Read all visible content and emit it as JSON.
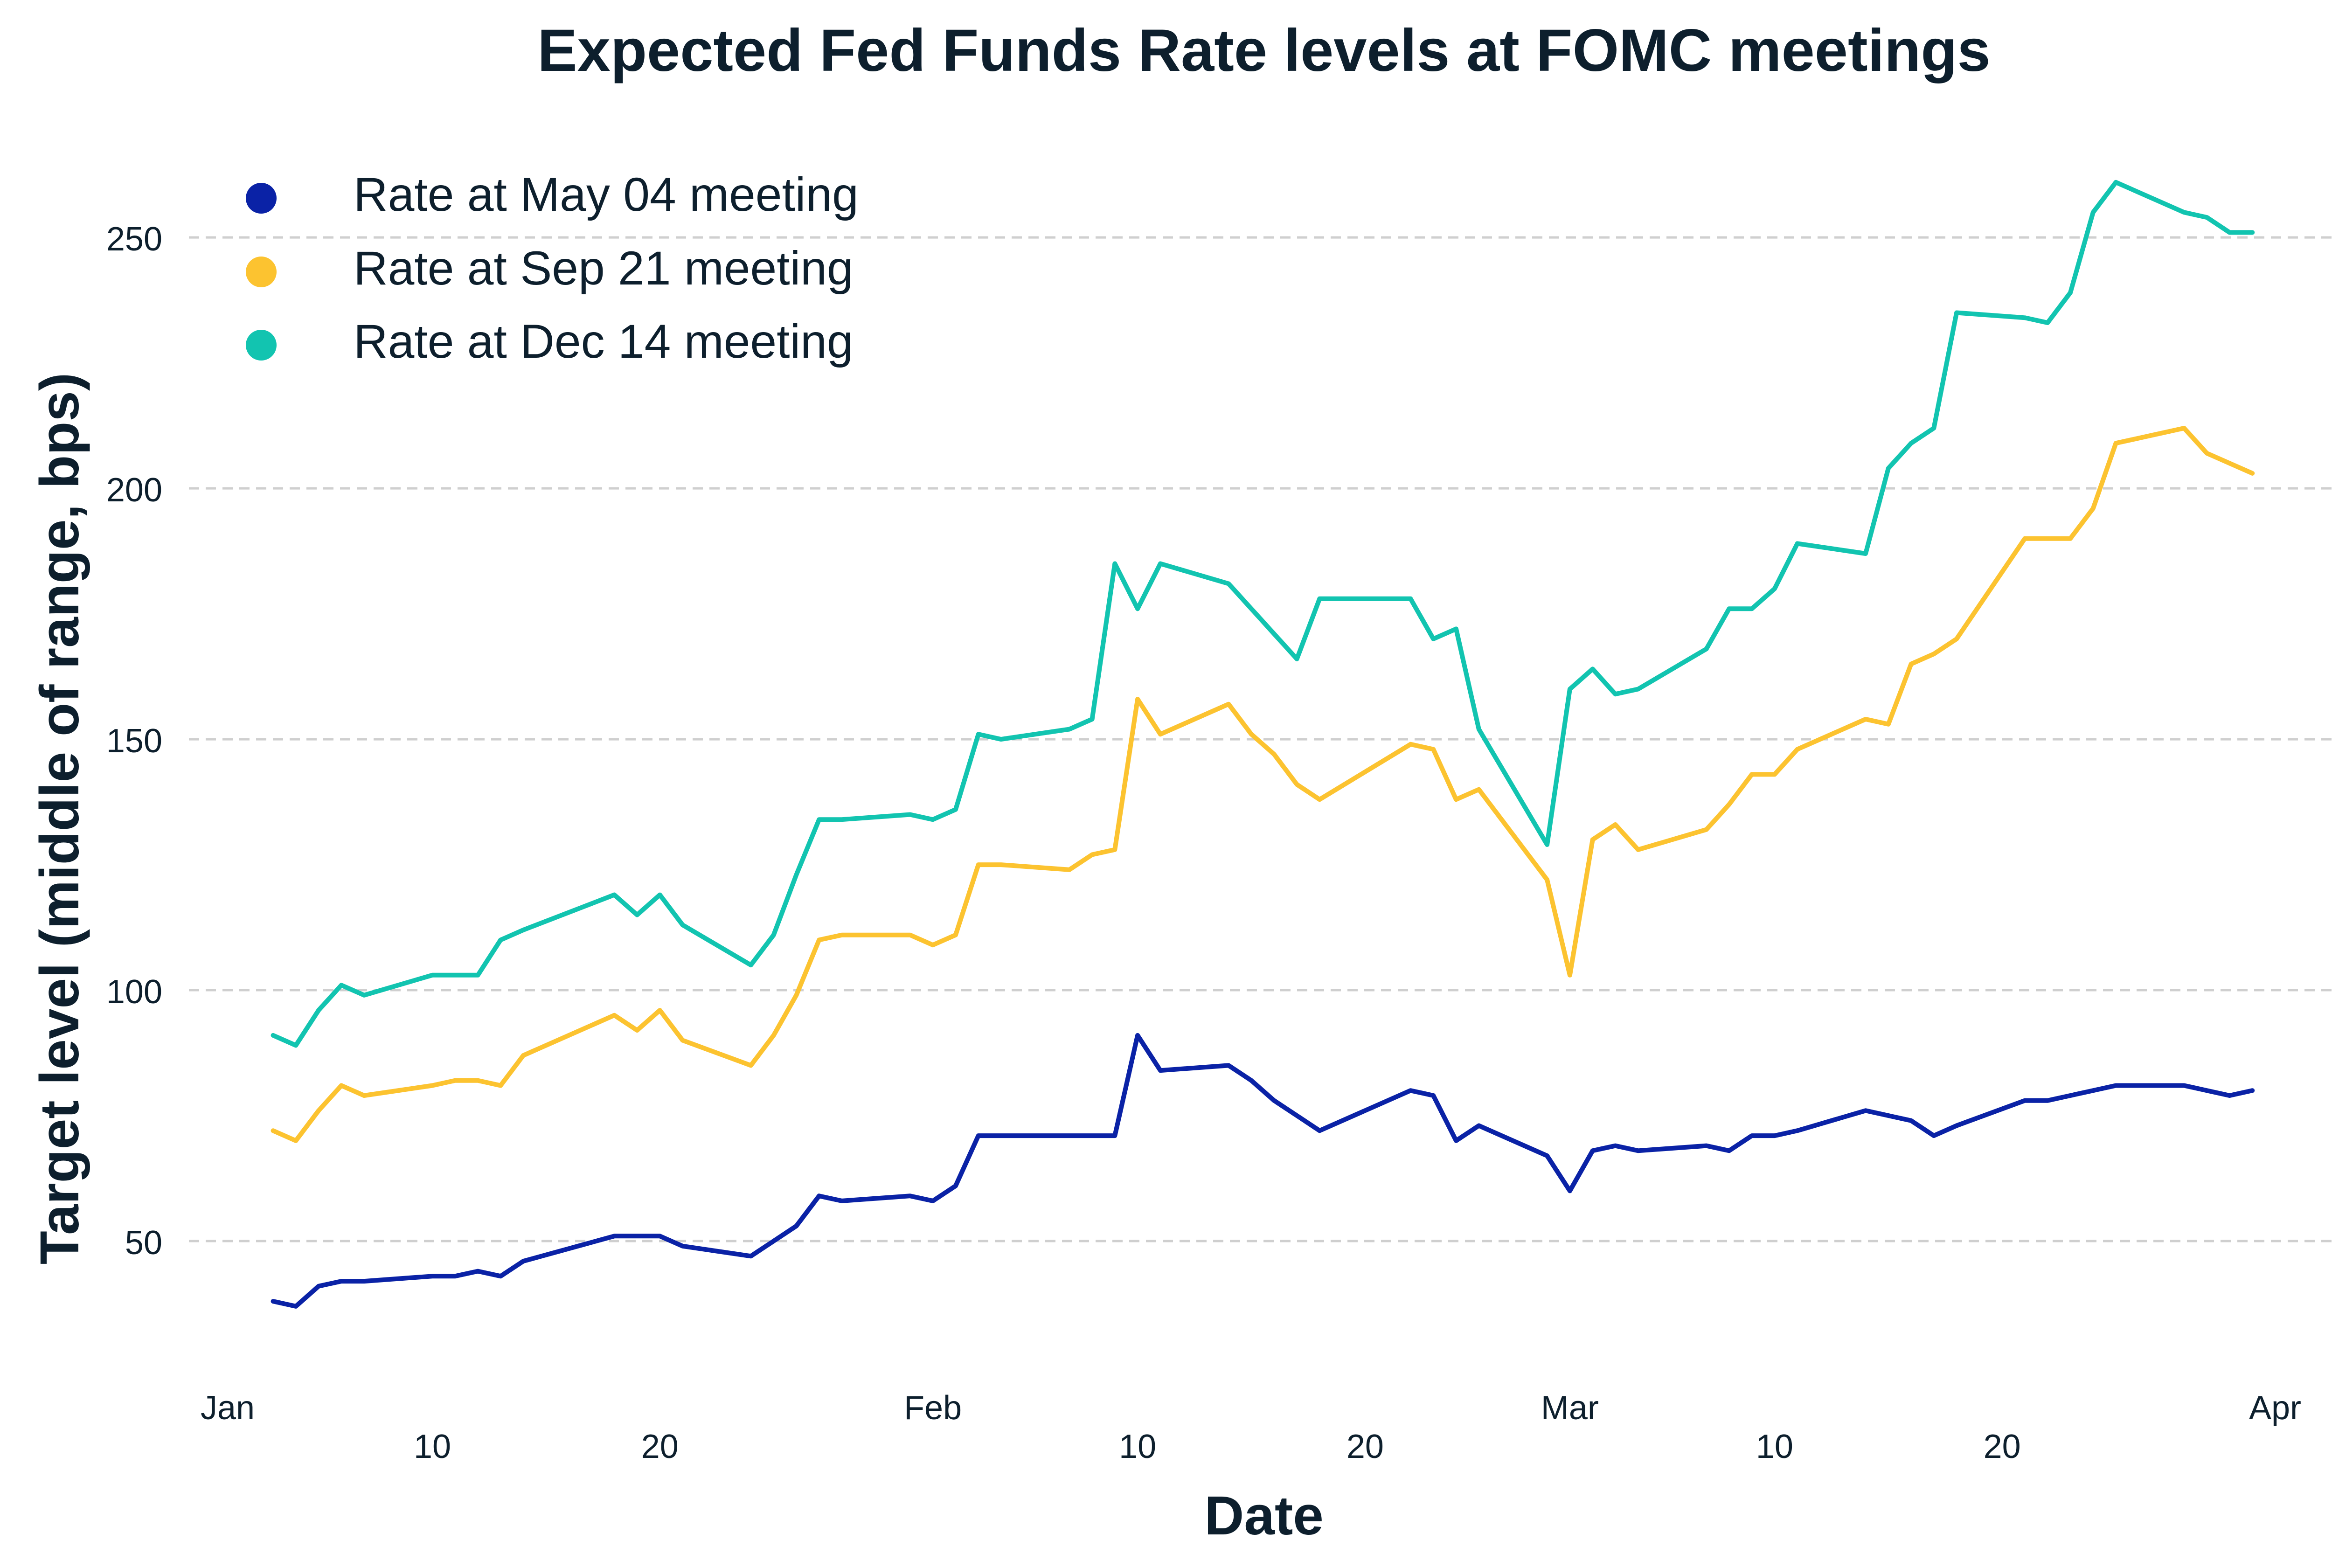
{
  "chart_data": {
    "type": "line",
    "title": "Expected Fed Funds Rate levels at FOMC meetings",
    "xlabel": "Date",
    "ylabel": "Target level (middle of range, bps)",
    "ylim": [
      25,
      262
    ],
    "yticks": [
      50,
      100,
      150,
      200,
      250
    ],
    "grid": "horizontal dashed",
    "legend_position": "top-left",
    "xdomain": [
      "2022-01-01",
      "2022-04-01"
    ],
    "x_major_ticks": [
      {
        "date": "2022-01-01",
        "label": "Jan"
      },
      {
        "date": "2022-02-01",
        "label": "Feb"
      },
      {
        "date": "2022-03-01",
        "label": "Mar"
      },
      {
        "date": "2022-04-01",
        "label": "Apr"
      }
    ],
    "x_minor_ticks": [
      {
        "date": "2022-01-10",
        "label": "10"
      },
      {
        "date": "2022-01-20",
        "label": "20"
      },
      {
        "date": "2022-02-10",
        "label": "10"
      },
      {
        "date": "2022-02-20",
        "label": "20"
      },
      {
        "date": "2022-03-10",
        "label": "10"
      },
      {
        "date": "2022-03-20",
        "label": "20"
      }
    ],
    "x": [
      "2022-01-03",
      "2022-01-04",
      "2022-01-05",
      "2022-01-06",
      "2022-01-07",
      "2022-01-10",
      "2022-01-11",
      "2022-01-12",
      "2022-01-13",
      "2022-01-14",
      "2022-01-18",
      "2022-01-19",
      "2022-01-20",
      "2022-01-21",
      "2022-01-24",
      "2022-01-25",
      "2022-01-26",
      "2022-01-27",
      "2022-01-28",
      "2022-01-31",
      "2022-02-01",
      "2022-02-02",
      "2022-02-03",
      "2022-02-04",
      "2022-02-07",
      "2022-02-08",
      "2022-02-09",
      "2022-02-10",
      "2022-02-11",
      "2022-02-14",
      "2022-02-15",
      "2022-02-16",
      "2022-02-17",
      "2022-02-18",
      "2022-02-22",
      "2022-02-23",
      "2022-02-24",
      "2022-02-25",
      "2022-02-28",
      "2022-03-01",
      "2022-03-02",
      "2022-03-03",
      "2022-03-04",
      "2022-03-07",
      "2022-03-08",
      "2022-03-09",
      "2022-03-10",
      "2022-03-11",
      "2022-03-14",
      "2022-03-15",
      "2022-03-16",
      "2022-03-17",
      "2022-03-18",
      "2022-03-21",
      "2022-03-22",
      "2022-03-23",
      "2022-03-24",
      "2022-03-25",
      "2022-03-28",
      "2022-03-29",
      "2022-03-30",
      "2022-03-31"
    ],
    "series": [
      {
        "name": "Rate at May 04 meeting",
        "color": "#0a22a6",
        "values": [
          38,
          37,
          41,
          42,
          42,
          43,
          43,
          44,
          43,
          46,
          51,
          51,
          51,
          49,
          47,
          50,
          53,
          59,
          58,
          59,
          58,
          61,
          71,
          71,
          71,
          71,
          71,
          91,
          84,
          85,
          82,
          78,
          75,
          72,
          80,
          79,
          70,
          73,
          67,
          60,
          68,
          69,
          68,
          69,
          68,
          71,
          71,
          72,
          76,
          75,
          74,
          71,
          73,
          78,
          78,
          79,
          80,
          81,
          81,
          80,
          79,
          80
        ]
      },
      {
        "name": "Rate at Sep 21 meeting",
        "color": "#fcc330",
        "values": [
          72,
          70,
          76,
          81,
          79,
          81,
          82,
          82,
          81,
          87,
          95,
          92,
          96,
          90,
          85,
          91,
          99,
          110,
          111,
          111,
          109,
          111,
          125,
          125,
          124,
          127,
          128,
          158,
          151,
          157,
          151,
          147,
          141,
          138,
          149,
          148,
          138,
          140,
          122,
          103,
          130,
          133,
          128,
          132,
          137,
          143,
          143,
          148,
          154,
          153,
          165,
          167,
          170,
          190,
          190,
          190,
          196,
          209,
          212,
          207,
          205,
          203
        ]
      },
      {
        "name": "Rate at Dec 14 meeting",
        "color": "#12c4b0",
        "values": [
          91,
          89,
          96,
          101,
          99,
          103,
          103,
          103,
          110,
          112,
          119,
          115,
          119,
          113,
          105,
          111,
          123,
          134,
          134,
          135,
          134,
          136,
          151,
          150,
          152,
          154,
          185,
          176,
          185,
          181,
          176,
          171,
          166,
          178,
          178,
          170,
          172,
          152,
          129,
          160,
          164,
          159,
          160,
          168,
          176,
          176,
          180,
          189,
          187,
          204,
          209,
          212,
          235,
          234,
          233,
          239,
          255,
          261,
          255,
          254,
          251,
          251
        ]
      }
    ]
  }
}
